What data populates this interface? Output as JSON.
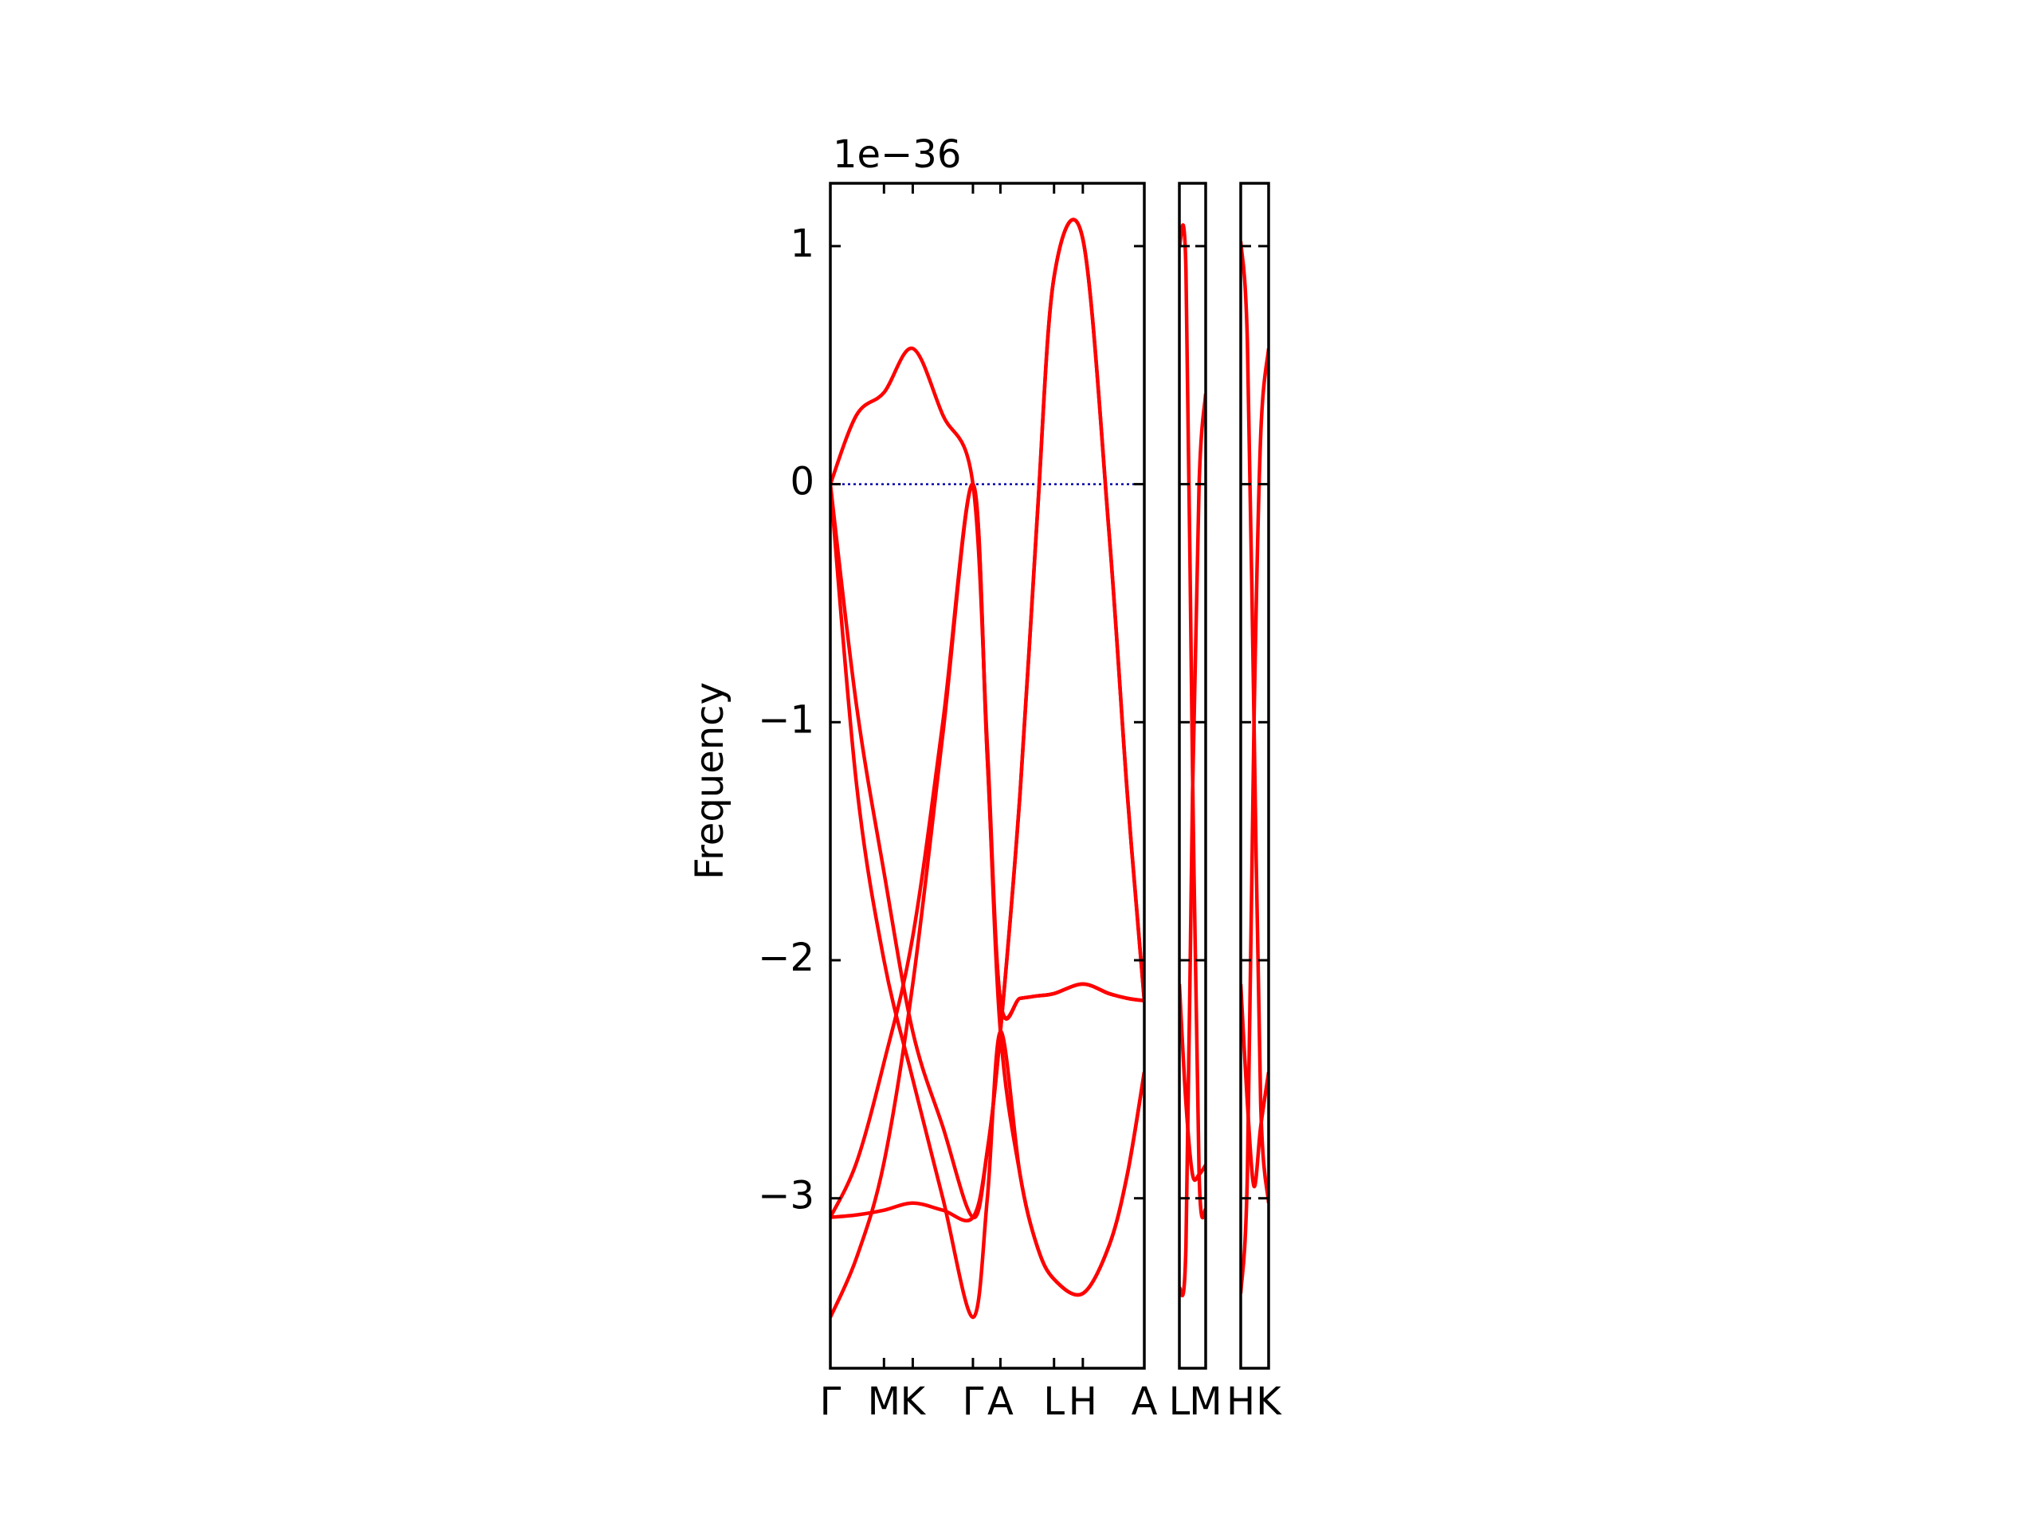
{
  "chart_data": [
    {
      "type": "line",
      "ylabel": "Frequency",
      "offset_label": "1e−36",
      "x": [
        0,
        20,
        41,
        63,
        86,
        109,
        120,
        130,
        145,
        158,
        171,
        193,
        213,
        227,
        240
      ],
      "xlim": [
        0,
        240
      ],
      "xticks": [
        {
          "value": 0,
          "label": "Γ"
        },
        {
          "value": 41,
          "label": "M"
        },
        {
          "value": 63,
          "label": "K"
        },
        {
          "value": 109,
          "label": "Γ"
        },
        {
          "value": 130,
          "label": "A"
        },
        {
          "value": 171,
          "label": "L"
        },
        {
          "value": 193,
          "label": "H"
        },
        {
          "value": 240,
          "label": "A"
        }
      ],
      "ylim": [
        -3.714,
        1.264
      ],
      "yticks": [
        {
          "value": -3,
          "label": "−3"
        },
        {
          "value": -2,
          "label": "−2"
        },
        {
          "value": -1,
          "label": "−1"
        },
        0,
        1
      ],
      "show_ytick_labels": true,
      "hline": {
        "value": 0,
        "color": "#0000aa",
        "style": "dotted"
      },
      "series": [
        {
          "color": "#ff0000",
          "values": [
            0,
            0.29,
            0.385,
            0.57,
            0.29,
            0,
            -1.1,
            -2.17,
            -2.16,
            -2.15,
            -2.14,
            -2.1,
            -2.14,
            -2.16,
            -2.17
          ]
        },
        {
          "color": "#ff0000",
          "values": [
            0,
            -0.93,
            -1.63,
            -2.3,
            -2.7,
            -3.08,
            -2.8,
            -2.3,
            -1.3,
            -0.15,
            0.87,
            1.03,
            -0.2,
            -1.3,
            -2.17
          ]
        },
        {
          "color": "#ff0000",
          "values": [
            0,
            -1.26,
            -2.0,
            -2.5,
            -3.0,
            -3.5,
            -3.0,
            -2.3,
            -2.9,
            -3.2,
            -3.34,
            -3.4,
            -3.2,
            -2.9,
            -2.47
          ]
        },
        {
          "color": "#ff0000",
          "values": [
            -3.5,
            -3.25,
            -2.85,
            -2.1,
            -1.05,
            0,
            -1.15,
            -2.3,
            -2.9,
            -3.2,
            -3.34,
            -3.4,
            -3.2,
            -2.9,
            -2.47
          ]
        },
        {
          "color": "#ff0000",
          "values": [
            -3.08,
            -2.85,
            -2.43,
            -1.9,
            -1.0,
            0,
            -1.15,
            -2.17,
            -2.16,
            -2.15,
            -2.14,
            -2.1,
            -2.14,
            -2.16,
            -2.17
          ]
        },
        {
          "color": "#ff0000",
          "values": [
            -3.08,
            -3.07,
            -3.05,
            -3.02,
            -3.05,
            -3.08,
            -2.8,
            -2.3,
            -1.3,
            -0.15,
            0.87,
            1.03,
            -0.2,
            -1.3,
            -2.17
          ]
        }
      ]
    },
    {
      "type": "line",
      "x": [
        0,
        5,
        10,
        15,
        20
      ],
      "xlim": [
        0,
        20
      ],
      "xticks": [
        {
          "value": 0,
          "label": "L"
        },
        {
          "value": 20,
          "label": "M"
        }
      ],
      "ylim": [
        -3.714,
        1.264
      ],
      "yticks": [
        -3,
        -2,
        -1,
        0,
        1
      ],
      "show_ytick_labels": false,
      "series": [
        {
          "color": "#ff0000",
          "values": [
            1.0,
            0.9,
            -1.2,
            -2.9,
            -3.05
          ]
        },
        {
          "color": "#ff0000",
          "values": [
            -3.38,
            -3.2,
            -1.3,
            0.0,
            0.38
          ]
        },
        {
          "color": "#ff0000",
          "values": [
            -2.1,
            -2.6,
            -2.9,
            -2.9,
            -2.86
          ]
        }
      ]
    },
    {
      "type": "line",
      "x": [
        0,
        5,
        10,
        15,
        21
      ],
      "xlim": [
        0,
        21
      ],
      "xticks": [
        {
          "value": 0,
          "label": "H"
        },
        {
          "value": 21,
          "label": "K"
        }
      ],
      "ylim": [
        -3.714,
        1.264
      ],
      "yticks": [
        -3,
        -2,
        -1,
        0,
        1
      ],
      "show_ytick_labels": false,
      "series": [
        {
          "color": "#ff0000",
          "values": [
            1.02,
            0.6,
            -1.0,
            -2.6,
            -3.02
          ]
        },
        {
          "color": "#ff0000",
          "values": [
            -3.4,
            -2.9,
            -1.0,
            0.2,
            0.57
          ]
        },
        {
          "color": "#ff0000",
          "values": [
            -2.1,
            -2.6,
            -2.95,
            -2.7,
            -2.47
          ]
        }
      ]
    }
  ]
}
